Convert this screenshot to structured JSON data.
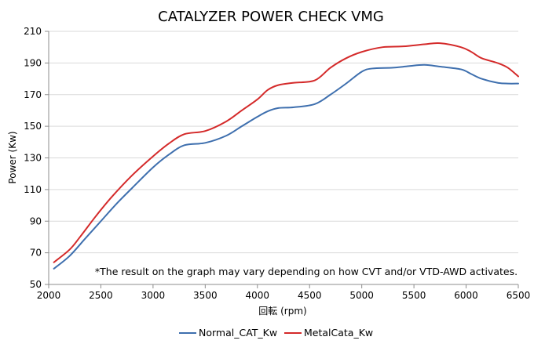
{
  "chart_data": {
    "type": "line",
    "title": "CATALYZER POWER CHECK VMG",
    "xlabel": "回転 (rpm)",
    "ylabel": "Power (Kw)",
    "xlim": [
      2000,
      6500
    ],
    "ylim": [
      50,
      210
    ],
    "x_ticks": [
      2000,
      2500,
      3000,
      3500,
      4000,
      4500,
      5000,
      5500,
      6000,
      6500
    ],
    "y_ticks": [
      50,
      70,
      90,
      110,
      130,
      150,
      170,
      190,
      210
    ],
    "x_tick_labels": [
      "2000",
      "2500",
      "3000",
      "3500",
      "4000",
      "4500",
      "5000",
      "5500",
      "6000",
      "6500"
    ],
    "y_tick_labels": [
      "50",
      "70",
      "90",
      "110",
      "130",
      "150",
      "170",
      "190",
      "210"
    ],
    "grid": "horizontal",
    "legend_position": "bottom",
    "annotation": "*The result on the graph may vary depending on how CVT and/or VTD-AWD activates.",
    "series": [
      {
        "name": "Normal_CAT_Kw",
        "color": "#3E6FAE",
        "points": [
          [
            2050,
            60
          ],
          [
            2200,
            68
          ],
          [
            2350,
            79
          ],
          [
            2500,
            90
          ],
          [
            2650,
            101
          ],
          [
            2800,
            111
          ],
          [
            3000,
            124
          ],
          [
            3150,
            132
          ],
          [
            3300,
            138
          ],
          [
            3500,
            139.5
          ],
          [
            3700,
            144
          ],
          [
            3850,
            150
          ],
          [
            4000,
            156
          ],
          [
            4100,
            159.5
          ],
          [
            4200,
            161.5
          ],
          [
            4350,
            162
          ],
          [
            4550,
            164
          ],
          [
            4700,
            170
          ],
          [
            4850,
            177
          ],
          [
            5000,
            184.5
          ],
          [
            5100,
            186.5
          ],
          [
            5300,
            187
          ],
          [
            5450,
            188
          ],
          [
            5600,
            188.8
          ],
          [
            5750,
            187.7
          ],
          [
            5950,
            186
          ],
          [
            6050,
            183
          ],
          [
            6150,
            180
          ],
          [
            6300,
            177.5
          ],
          [
            6400,
            177
          ],
          [
            6500,
            177
          ]
        ]
      },
      {
        "name": "MetalCata_Kw",
        "color": "#D42A2A",
        "points": [
          [
            2050,
            64
          ],
          [
            2200,
            72
          ],
          [
            2300,
            80
          ],
          [
            2450,
            93
          ],
          [
            2600,
            105
          ],
          [
            2800,
            119
          ],
          [
            3000,
            131
          ],
          [
            3150,
            139
          ],
          [
            3300,
            145
          ],
          [
            3500,
            147
          ],
          [
            3700,
            153
          ],
          [
            3850,
            160
          ],
          [
            4000,
            167
          ],
          [
            4100,
            173
          ],
          [
            4200,
            176
          ],
          [
            4350,
            177.5
          ],
          [
            4550,
            179
          ],
          [
            4700,
            187
          ],
          [
            4850,
            193
          ],
          [
            5000,
            197
          ],
          [
            5200,
            200
          ],
          [
            5400,
            200.5
          ],
          [
            5600,
            201.8
          ],
          [
            5750,
            202.5
          ],
          [
            5950,
            200
          ],
          [
            6050,
            197
          ],
          [
            6150,
            193
          ],
          [
            6300,
            190
          ],
          [
            6400,
            187
          ],
          [
            6500,
            181.5
          ]
        ]
      }
    ]
  }
}
